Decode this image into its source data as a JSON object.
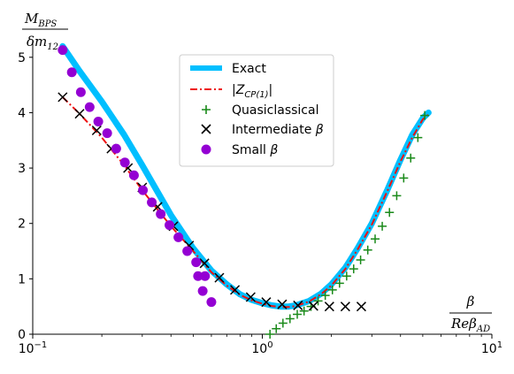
{
  "chart_data": {
    "type": "line",
    "xscale": "log",
    "xlim": [
      0.1,
      10
    ],
    "ylim": [
      0,
      5.3
    ],
    "xticks": [
      {
        "value": 0.1,
        "base": "10",
        "exp": "−1"
      },
      {
        "value": 1,
        "base": "10",
        "exp": "0"
      },
      {
        "value": 10,
        "base": "10",
        "exp": "1"
      }
    ],
    "yticks": [
      0,
      1,
      2,
      3,
      4,
      5
    ],
    "xlabel": {
      "num": "β",
      "den_main": "Reβ",
      "den_sub": "AD"
    },
    "ylabel": {
      "num_main": "M",
      "num_sub": "BPS",
      "den_main": "δm",
      "den_sub": "12"
    },
    "legend_position": "top-center",
    "series": [
      {
        "name": "Exact",
        "kind": "thick-line",
        "color": "#00bfff",
        "x": [
          0.135,
          0.16,
          0.2,
          0.25,
          0.3,
          0.4,
          0.5,
          0.6,
          0.7,
          0.8,
          0.9,
          1.0,
          1.1,
          1.2,
          1.3,
          1.4,
          1.6,
          1.8,
          2.0,
          2.3,
          2.6,
          3.0,
          3.5,
          4.0,
          4.5,
          5.0,
          5.3
        ],
        "y": [
          5.2,
          4.75,
          4.2,
          3.6,
          3.05,
          2.15,
          1.55,
          1.15,
          0.9,
          0.72,
          0.62,
          0.56,
          0.52,
          0.5,
          0.5,
          0.52,
          0.6,
          0.73,
          0.9,
          1.2,
          1.55,
          2.0,
          2.6,
          3.15,
          3.6,
          3.9,
          4.0
        ]
      },
      {
        "name": "|Z_{CP(1)}|",
        "legend_main": "|Z",
        "legend_sub": "CP(1)",
        "legend_tail": "|",
        "kind": "dashdot-line",
        "color": "#ee1111",
        "x": [
          0.135,
          0.16,
          0.2,
          0.25,
          0.3,
          0.35,
          0.4,
          0.5,
          0.6,
          0.7,
          0.8,
          0.9,
          1.0,
          1.1,
          1.2,
          1.3,
          1.4,
          1.6,
          1.8,
          2.0,
          2.3,
          2.6,
          3.0,
          3.5,
          4.0,
          4.5,
          5.0,
          5.3
        ],
        "y": [
          4.28,
          3.98,
          3.55,
          3.05,
          2.6,
          2.25,
          1.95,
          1.5,
          1.12,
          0.88,
          0.71,
          0.61,
          0.55,
          0.51,
          0.49,
          0.49,
          0.51,
          0.59,
          0.72,
          0.88,
          1.18,
          1.53,
          1.98,
          2.58,
          3.12,
          3.55,
          3.88,
          3.97
        ]
      },
      {
        "name": "Quasiclassical",
        "kind": "plus",
        "color": "#1a8a1a",
        "x": [
          1.08,
          1.15,
          1.23,
          1.32,
          1.42,
          1.52,
          1.63,
          1.75,
          1.88,
          2.02,
          2.17,
          2.33,
          2.5,
          2.68,
          2.88,
          3.1,
          3.33,
          3.58,
          3.85,
          4.13,
          4.43,
          4.76,
          5.1
        ],
        "y": [
          0.0,
          0.1,
          0.2,
          0.28,
          0.36,
          0.42,
          0.5,
          0.6,
          0.7,
          0.8,
          0.92,
          1.05,
          1.18,
          1.34,
          1.52,
          1.72,
          1.95,
          2.2,
          2.5,
          2.82,
          3.18,
          3.55,
          3.95
        ]
      },
      {
        "name": "Intermediate β",
        "legend_main": "Intermediate ",
        "legend_greek": "β",
        "kind": "x",
        "color": "#000000",
        "x": [
          0.135,
          0.16,
          0.19,
          0.22,
          0.26,
          0.3,
          0.35,
          0.41,
          0.48,
          0.56,
          0.65,
          0.76,
          0.89,
          1.04,
          1.22,
          1.43,
          1.67,
          1.96,
          2.3,
          2.7
        ],
        "y": [
          4.28,
          3.98,
          3.68,
          3.35,
          3.0,
          2.65,
          2.3,
          1.95,
          1.6,
          1.28,
          1.02,
          0.8,
          0.67,
          0.58,
          0.54,
          0.52,
          0.51,
          0.5,
          0.5,
          0.5
        ]
      },
      {
        "name": "Small β",
        "legend_main": "Small ",
        "legend_greek": "β",
        "kind": "dot",
        "color": "#9400d3",
        "x": [
          0.135,
          0.148,
          0.162,
          0.177,
          0.193,
          0.211,
          0.231,
          0.252,
          0.276,
          0.302,
          0.33,
          0.361,
          0.394,
          0.431,
          0.471,
          0.515,
          0.563
        ],
        "y": [
          5.13,
          4.73,
          4.37,
          4.1,
          3.84,
          3.63,
          3.35,
          3.1,
          2.87,
          2.6,
          2.38,
          2.17,
          1.97,
          1.75,
          1.5,
          1.3,
          1.05
        ]
      }
    ],
    "extra_small_beta": {
      "x": [
        0.525,
        0.55,
        0.6
      ],
      "y": [
        1.05,
        0.78,
        0.58
      ]
    }
  }
}
